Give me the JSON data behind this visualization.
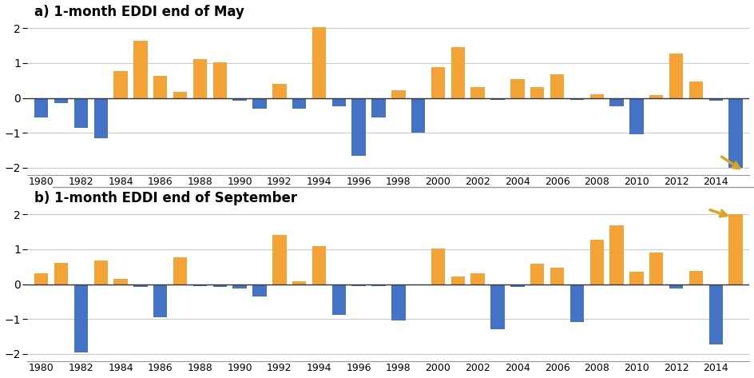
{
  "title_a": "a) 1-month EDDI end of May",
  "title_b": "b) 1-month EDDI end of September",
  "years": [
    1980,
    1981,
    1982,
    1983,
    1984,
    1985,
    1986,
    1987,
    1988,
    1989,
    1990,
    1991,
    1992,
    1993,
    1994,
    1995,
    1996,
    1997,
    1998,
    1999,
    2000,
    2001,
    2002,
    2003,
    2004,
    2005,
    2006,
    2007,
    2008,
    2009,
    2010,
    2011,
    2012,
    2013,
    2014,
    2015
  ],
  "may_values": [
    -0.55,
    -0.15,
    -0.85,
    -1.15,
    0.78,
    1.65,
    0.62,
    0.18,
    1.12,
    1.02,
    -0.08,
    -0.3,
    0.4,
    -0.3,
    2.02,
    -0.25,
    -1.65,
    -0.55,
    0.22,
    -1.0,
    0.88,
    1.45,
    0.3,
    -0.05,
    0.55,
    0.3,
    0.68,
    -0.05,
    0.1,
    -0.25,
    -1.05,
    0.08,
    1.28,
    0.48,
    -0.08,
    -2.0
  ],
  "sep_values": [
    0.32,
    0.62,
    -1.95,
    0.68,
    0.15,
    -0.08,
    -0.95,
    0.78,
    -0.05,
    -0.08,
    -0.12,
    -0.35,
    1.42,
    0.08,
    1.1,
    -0.88,
    -0.05,
    -0.05,
    -1.05,
    0.0,
    1.02,
    0.22,
    0.3,
    -1.3,
    -0.08,
    0.58,
    0.48,
    -1.08,
    1.28,
    1.68,
    0.35,
    0.9,
    -0.12,
    0.38,
    -1.72,
    2.0
  ],
  "bar_color_pos": "#F4A336",
  "bar_color_neg": "#4472C4",
  "ylim": [
    -2.2,
    2.2
  ],
  "yticks": [
    -2,
    -1,
    0,
    1,
    2
  ],
  "arrow_color": "#DAA520",
  "bg_color": "#FFFFFF",
  "grid_color": "#CCCCCC",
  "bar_width": 0.7,
  "figsize": [
    9.44,
    4.73
  ],
  "dpi": 100
}
